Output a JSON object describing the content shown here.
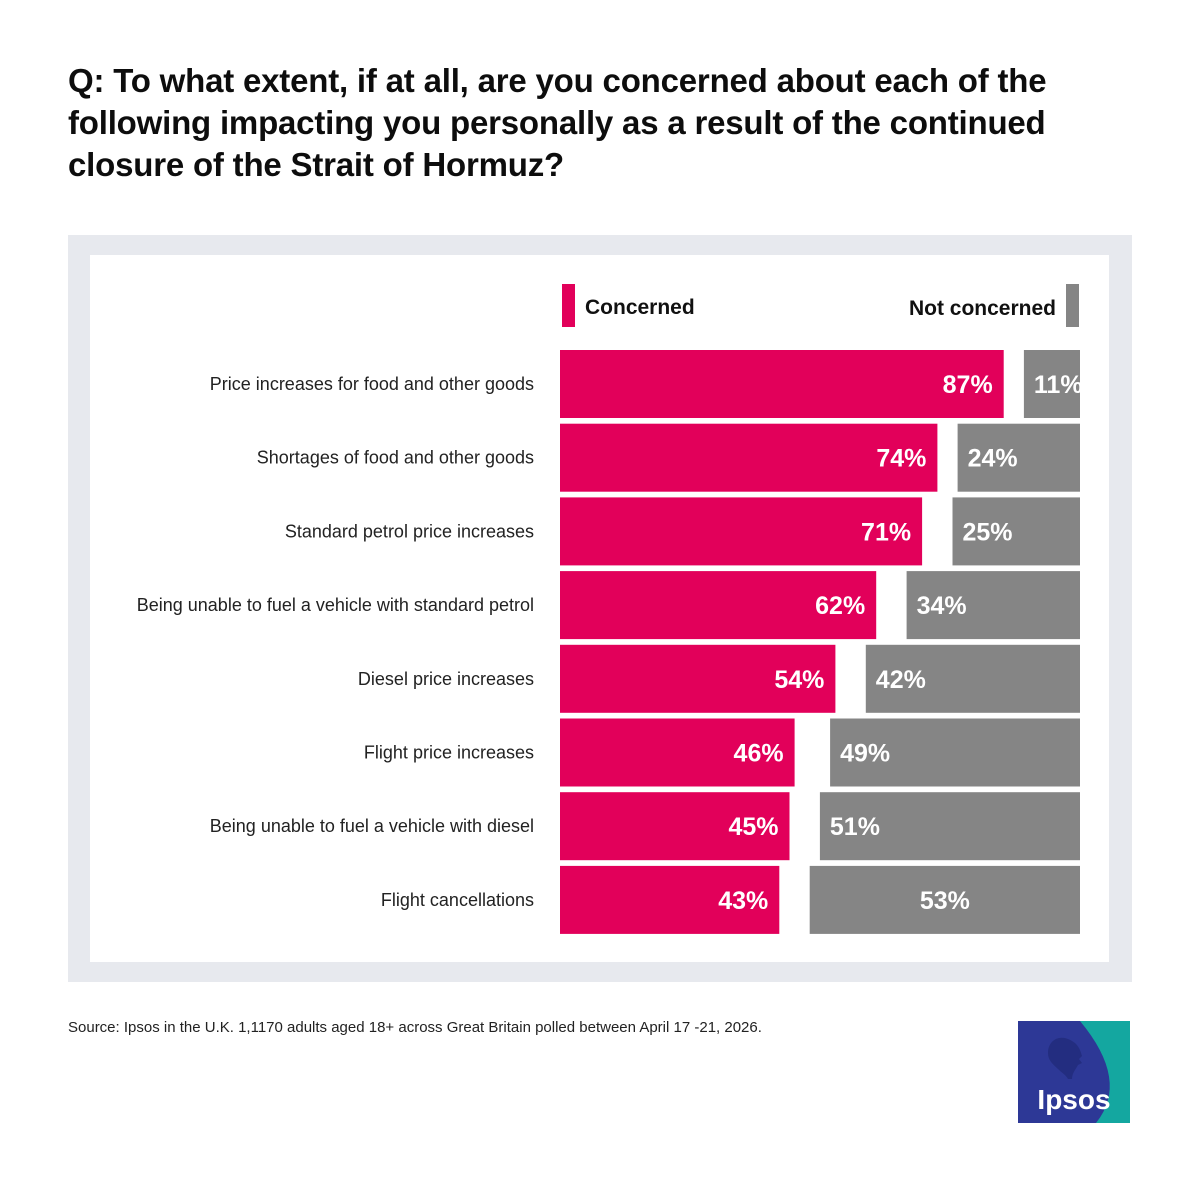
{
  "question": "Q: To what extent, if at all, are you concerned about each of the following impacting you personally as a result of the continued closure of the Strait of Hormuz?",
  "source": "Source: Ipsos in the U.K. 1,1170 adults aged 18+ across Great Britain polled between April 17 -21, 2026.",
  "logo": {
    "text": "Ipsos",
    "primary": "#2d3896",
    "secondary": "#14a7a0"
  },
  "colors": {
    "concerned": "#e2005a",
    "not_concerned": "#858585",
    "value_text": "#ffffff"
  },
  "chart_data": {
    "type": "bar",
    "orientation": "horizontal",
    "stacking": "diverging-split",
    "legend": {
      "placement": "top",
      "items": [
        "Concerned",
        "Not concerned"
      ]
    },
    "categories": [
      "Price increases for food and other goods",
      "Shortages of food and other goods",
      "Standard petrol price increases",
      "Being unable to fuel a vehicle with standard petrol",
      "Diesel price increases",
      "Flight price increases",
      "Being unable to fuel a vehicle with diesel",
      "Flight cancellations"
    ],
    "series": [
      {
        "name": "Concerned",
        "values": [
          87,
          74,
          71,
          62,
          54,
          46,
          45,
          43
        ],
        "labels": [
          "87%",
          "74%",
          "71%",
          "62%",
          "54%",
          "46%",
          "45%",
          "43%"
        ]
      },
      {
        "name": "Not concerned",
        "values": [
          11,
          24,
          25,
          34,
          42,
          49,
          51,
          53
        ],
        "labels": [
          "11%",
          "24%",
          "25%",
          "34%",
          "42%",
          "49%",
          "51%",
          "53%"
        ]
      }
    ],
    "xlim": [
      0,
      100
    ],
    "grid": false
  }
}
